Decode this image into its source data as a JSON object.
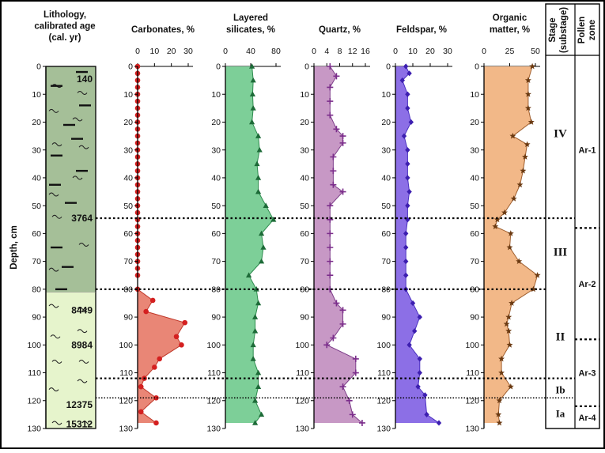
{
  "chart_data": {
    "type": "area",
    "depth_axis": {
      "label": "Depth, cm",
      "range": [
        0,
        130
      ],
      "ticks": [
        0,
        10,
        20,
        30,
        40,
        50,
        60,
        70,
        80,
        90,
        100,
        110,
        120,
        130
      ],
      "inverted": true
    },
    "lithology": {
      "title": "Lithology,\ncalibrated age\n(cal. yr)",
      "units": [
        {
          "name": "upper",
          "from": 0,
          "to": 81,
          "color": "#a5bf98"
        },
        {
          "name": "lower",
          "from": 81,
          "to": 130,
          "color": "#e6f4cc"
        }
      ],
      "ages": [
        {
          "label": "140",
          "depth": 4.5
        },
        {
          "label": "3764",
          "depth": 54.5
        },
        {
          "label": "8449",
          "depth": 87.5
        },
        {
          "label": "8984",
          "depth": 100
        },
        {
          "label": "12375",
          "depth": 121.5
        },
        {
          "label": "15312",
          "depth": 128.5
        }
      ]
    },
    "panels": [
      {
        "name": "carbonates",
        "title": "Carbonates, %",
        "xlim": [
          0,
          30
        ],
        "xticks": [
          0,
          10,
          20,
          30
        ],
        "fill": "#e98676",
        "stroke": "#c0392b",
        "marker": "circle",
        "marker_color": "#d42020",
        "depth": [
          0,
          2.5,
          5,
          7.5,
          10,
          12.5,
          15,
          17.5,
          20,
          22.5,
          25,
          27.5,
          30,
          32.5,
          35,
          37.5,
          40,
          42.5,
          45,
          47.5,
          50,
          52.5,
          55,
          57.5,
          60,
          62.5,
          65,
          67.5,
          70,
          72.5,
          75,
          80,
          84,
          88,
          92,
          97,
          100,
          105,
          108,
          112,
          115,
          119,
          124,
          128
        ],
        "values": [
          0,
          0,
          0,
          0,
          0,
          0,
          0,
          0,
          0,
          0,
          0,
          0,
          0,
          0,
          0,
          0,
          0,
          0,
          0,
          0,
          0,
          0,
          0,
          0,
          0,
          0,
          0,
          0,
          0,
          0,
          0,
          0,
          9,
          5,
          28,
          23,
          26,
          13,
          10,
          4,
          2,
          11,
          2,
          11
        ]
      },
      {
        "name": "layered-silicates",
        "title": "Layered\nsilicates, %",
        "xlim": [
          0,
          80
        ],
        "xticks": [
          0,
          40,
          80
        ],
        "fill": "#7dcf98",
        "stroke": "#2e8b4e",
        "marker": "triangle",
        "marker_color": "#1d6b38",
        "depth": [
          0,
          5,
          10,
          15,
          20,
          25,
          30,
          35,
          40,
          45,
          50,
          55,
          60,
          65,
          70,
          75,
          80,
          85,
          90,
          95,
          100,
          105,
          110,
          115,
          120,
          125,
          128
        ],
        "values": [
          42,
          44,
          43,
          44,
          42,
          52,
          54,
          50,
          52,
          52,
          64,
          76,
          57,
          60,
          57,
          37,
          49,
          52,
          47,
          47,
          44,
          44,
          52,
          52,
          47,
          57,
          47
        ]
      },
      {
        "name": "quartz",
        "title": "Quartz, %",
        "xlim": [
          0,
          16
        ],
        "xticks": [
          0,
          4,
          8,
          12,
          16
        ],
        "fill": "#c798c5",
        "stroke": "#7e3e8a",
        "marker": "plus",
        "marker_color": "#7b2d8b",
        "depth": [
          0,
          3.5,
          7.5,
          12.5,
          17.5,
          22.5,
          25,
          27.5,
          32.5,
          37.5,
          42.5,
          45,
          50,
          55,
          60,
          65,
          70,
          75,
          80,
          85,
          87.5,
          92.5,
          97.5,
          100,
          105,
          110,
          115,
          120,
          125,
          128
        ],
        "values": [
          5,
          7,
          5,
          5,
          5,
          7,
          9,
          9,
          6,
          6,
          6,
          9,
          5,
          5,
          5,
          5,
          5,
          5,
          5,
          7,
          9,
          9,
          6,
          4,
          13,
          13,
          9,
          11,
          12,
          15
        ]
      },
      {
        "name": "feldspar",
        "title": "Feldspar, %",
        "xlim": [
          0,
          30
        ],
        "xticks": [
          0,
          10,
          20,
          30
        ],
        "fill": "#8c6fe6",
        "stroke": "#4a2fc0",
        "marker": "diamond",
        "marker_color": "#3d1fb0",
        "depth": [
          0,
          2.5,
          5,
          10,
          15,
          20,
          25,
          30,
          35,
          40,
          45,
          50,
          55,
          60,
          65,
          70,
          75,
          80,
          85,
          90,
          95,
          100,
          105,
          110,
          115,
          118,
          125,
          128
        ],
        "values": [
          6,
          8,
          4,
          7,
          7,
          9,
          5,
          7,
          7,
          7,
          8,
          7,
          7,
          6,
          6,
          6,
          6,
          6,
          10,
          14,
          11,
          8,
          14,
          14,
          13,
          17,
          18,
          25
        ]
      },
      {
        "name": "organic-matter",
        "title": "Organic\nmatter, %",
        "xlim": [
          0,
          50
        ],
        "xticks": [
          0,
          25,
          50
        ],
        "fill": "#f2b888",
        "stroke": "#a06030",
        "marker": "star",
        "marker_color": "#6b3a12",
        "depth": [
          0,
          5,
          10,
          15,
          20,
          25,
          28,
          32.5,
          37.5,
          42.5,
          47.5,
          52.5,
          55,
          57.5,
          60,
          65,
          70,
          75,
          80,
          85,
          90,
          92.5,
          95,
          100,
          105,
          110,
          115,
          120,
          125,
          128
        ],
        "values": [
          47,
          43,
          43,
          43,
          46,
          28,
          42,
          40,
          38,
          35,
          29,
          20,
          13,
          11,
          26,
          25,
          34,
          52,
          48,
          27,
          24,
          22,
          24,
          25,
          17,
          17,
          26,
          15,
          14,
          15
        ]
      }
    ],
    "boundaries": [
      {
        "depth": 54.5,
        "style": "dotted",
        "span": "full"
      },
      {
        "depth": 80,
        "style": "dotted",
        "span": "core"
      },
      {
        "depth": 112,
        "style": "dotted",
        "span": "full"
      },
      {
        "depth": 119,
        "style": "dotted-thin",
        "span": "full"
      }
    ],
    "stages": {
      "title": "Stage\n(substage)",
      "items": [
        {
          "label": "IV",
          "depth": 24
        },
        {
          "label": "III",
          "depth": 66.5
        },
        {
          "label": "II",
          "depth": 97
        },
        {
          "label": "Ib",
          "depth": 116
        },
        {
          "label": "Ia",
          "depth": 124.5
        }
      ]
    },
    "pollen": {
      "title": "Pollen\nzone",
      "items": [
        {
          "label": "Ar-1",
          "depth": 30
        },
        {
          "label": "Ar-2",
          "depth": 78
        },
        {
          "label": "Ar-3",
          "depth": 110
        },
        {
          "label": "Ar-4",
          "depth": 126
        }
      ],
      "dividers": [
        58,
        98,
        122
      ]
    }
  }
}
